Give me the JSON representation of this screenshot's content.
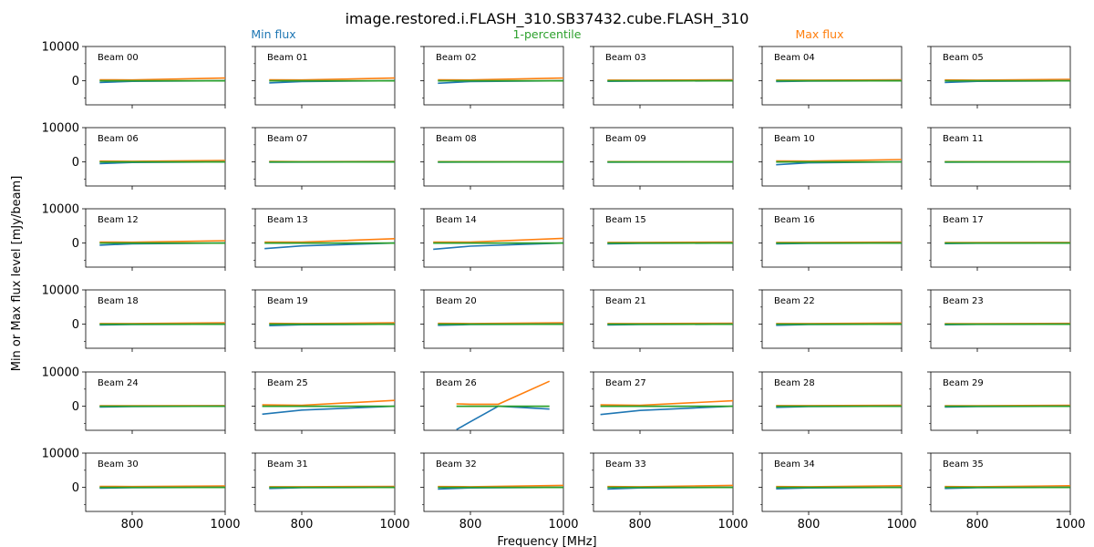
{
  "figure": {
    "title": "image.restored.i.FLASH_310.SB37432.cube.FLASH_310",
    "legend": [
      {
        "label": "Min flux",
        "color": "#1f77b4"
      },
      {
        "label": "1-percentile",
        "color": "#2ca02c"
      },
      {
        "label": "Max flux",
        "color": "#ff7f0e"
      }
    ],
    "xlabel": "Frequency [MHz]",
    "ylabel": "Min or Max flux level [mJy/beam]"
  },
  "chart_data": {
    "type": "line",
    "grid": false,
    "layout": "6x6 small multiples, shared axes",
    "xlim": [
      700,
      1000
    ],
    "ylim": [
      -7000,
      10000
    ],
    "xticks": [
      800,
      1000
    ],
    "yticks": [
      0,
      10000
    ],
    "series_names": [
      "Min flux",
      "1-percentile",
      "Max flux"
    ],
    "panels": [
      {
        "label": "Beam 00",
        "x": [
          730,
          800,
          1000
        ],
        "min": [
          -500,
          -150,
          0
        ],
        "p1": [
          0,
          0,
          0
        ],
        "max": [
          300,
          250,
          800
        ]
      },
      {
        "label": "Beam 01",
        "x": [
          730,
          800,
          1000
        ],
        "min": [
          -600,
          -200,
          0
        ],
        "p1": [
          0,
          0,
          0
        ],
        "max": [
          300,
          250,
          800
        ]
      },
      {
        "label": "Beam 02",
        "x": [
          730,
          800,
          1000
        ],
        "min": [
          -700,
          -200,
          0
        ],
        "p1": [
          0,
          0,
          0
        ],
        "max": [
          300,
          250,
          800
        ]
      },
      {
        "label": "Beam 03",
        "x": [
          730,
          800,
          1000
        ],
        "min": [
          -150,
          -100,
          0
        ],
        "p1": [
          0,
          0,
          0
        ],
        "max": [
          200,
          200,
          300
        ]
      },
      {
        "label": "Beam 04",
        "x": [
          730,
          800,
          1000
        ],
        "min": [
          -200,
          -100,
          0
        ],
        "p1": [
          0,
          0,
          0
        ],
        "max": [
          200,
          200,
          300
        ]
      },
      {
        "label": "Beam 05",
        "x": [
          730,
          800,
          1000
        ],
        "min": [
          -500,
          -150,
          0
        ],
        "p1": [
          0,
          0,
          0
        ],
        "max": [
          250,
          200,
          450
        ]
      },
      {
        "label": "Beam 06",
        "x": [
          730,
          800,
          1000
        ],
        "min": [
          -500,
          -150,
          0
        ],
        "p1": [
          0,
          0,
          0
        ],
        "max": [
          250,
          200,
          450
        ]
      },
      {
        "label": "Beam 07",
        "x": [
          730,
          800,
          1000
        ],
        "min": [
          -100,
          -50,
          0
        ],
        "p1": [
          0,
          0,
          0
        ],
        "max": [
          150,
          100,
          150
        ]
      },
      {
        "label": "Beam 08",
        "x": [
          730,
          800,
          1000
        ],
        "min": [
          -100,
          -50,
          0
        ],
        "p1": [
          0,
          0,
          0
        ],
        "max": [
          100,
          100,
          100
        ]
      },
      {
        "label": "Beam 09",
        "x": [
          730,
          800,
          1000
        ],
        "min": [
          -100,
          -50,
          0
        ],
        "p1": [
          0,
          0,
          0
        ],
        "max": [
          100,
          100,
          100
        ]
      },
      {
        "label": "Beam 10",
        "x": [
          730,
          800,
          1000
        ],
        "min": [
          -800,
          -250,
          0
        ],
        "p1": [
          0,
          0,
          0
        ],
        "max": [
          300,
          250,
          700
        ]
      },
      {
        "label": "Beam 11",
        "x": [
          730,
          800,
          1000
        ],
        "min": [
          -100,
          -50,
          0
        ],
        "p1": [
          0,
          0,
          0
        ],
        "max": [
          100,
          100,
          100
        ]
      },
      {
        "label": "Beam 12",
        "x": [
          730,
          800,
          1000
        ],
        "min": [
          -600,
          -200,
          0
        ],
        "p1": [
          0,
          0,
          0
        ],
        "max": [
          300,
          250,
          700
        ]
      },
      {
        "label": "Beam 13",
        "x": [
          720,
          800,
          1000
        ],
        "min": [
          -1600,
          -800,
          0
        ],
        "p1": [
          0,
          0,
          0
        ],
        "max": [
          300,
          300,
          1300
        ]
      },
      {
        "label": "Beam 14",
        "x": [
          720,
          800,
          1000
        ],
        "min": [
          -1800,
          -900,
          0
        ],
        "p1": [
          0,
          0,
          0
        ],
        "max": [
          300,
          300,
          1400
        ]
      },
      {
        "label": "Beam 15",
        "x": [
          730,
          800,
          1000
        ],
        "min": [
          -200,
          -100,
          0
        ],
        "p1": [
          0,
          0,
          0
        ],
        "max": [
          200,
          200,
          300
        ]
      },
      {
        "label": "Beam 16",
        "x": [
          730,
          800,
          1000
        ],
        "min": [
          -200,
          -100,
          0
        ],
        "p1": [
          0,
          0,
          0
        ],
        "max": [
          200,
          200,
          300
        ]
      },
      {
        "label": "Beam 17",
        "x": [
          730,
          800,
          1000
        ],
        "min": [
          -150,
          -50,
          0
        ],
        "p1": [
          0,
          0,
          0
        ],
        "max": [
          150,
          150,
          200
        ]
      },
      {
        "label": "Beam 18",
        "x": [
          730,
          800,
          1000
        ],
        "min": [
          -200,
          -100,
          0
        ],
        "p1": [
          0,
          0,
          0
        ],
        "max": [
          200,
          200,
          400
        ]
      },
      {
        "label": "Beam 19",
        "x": [
          730,
          800,
          1000
        ],
        "min": [
          -400,
          -150,
          0
        ],
        "p1": [
          0,
          0,
          0
        ],
        "max": [
          250,
          200,
          400
        ]
      },
      {
        "label": "Beam 20",
        "x": [
          730,
          800,
          1000
        ],
        "min": [
          -300,
          -100,
          0
        ],
        "p1": [
          0,
          0,
          0
        ],
        "max": [
          250,
          200,
          400
        ]
      },
      {
        "label": "Beam 21",
        "x": [
          730,
          800,
          1000
        ],
        "min": [
          -200,
          -100,
          0
        ],
        "p1": [
          0,
          0,
          0
        ],
        "max": [
          200,
          200,
          300
        ]
      },
      {
        "label": "Beam 22",
        "x": [
          730,
          800,
          1000
        ],
        "min": [
          -300,
          -100,
          0
        ],
        "p1": [
          0,
          0,
          0
        ],
        "max": [
          200,
          200,
          350
        ]
      },
      {
        "label": "Beam 23",
        "x": [
          730,
          800,
          1000
        ],
        "min": [
          -150,
          -50,
          0
        ],
        "p1": [
          0,
          0,
          0
        ],
        "max": [
          150,
          150,
          250
        ]
      },
      {
        "label": "Beam 24",
        "x": [
          730,
          800,
          1000
        ],
        "min": [
          -200,
          -100,
          0
        ],
        "p1": [
          0,
          0,
          0
        ],
        "max": [
          150,
          150,
          200
        ]
      },
      {
        "label": "Beam 25",
        "x": [
          715,
          800,
          1000
        ],
        "min": [
          -2300,
          -1100,
          0
        ],
        "p1": [
          0,
          0,
          0
        ],
        "max": [
          400,
          300,
          1700
        ]
      },
      {
        "label": "Beam 26",
        "x": [
          770,
          800,
          860,
          970
        ],
        "min": [
          -6800,
          -4500,
          0,
          -800
        ],
        "p1": [
          0,
          0,
          0,
          0
        ],
        "max": [
          700,
          600,
          600,
          7300
        ]
      },
      {
        "label": "Beam 27",
        "x": [
          715,
          800,
          1000
        ],
        "min": [
          -2400,
          -1200,
          0
        ],
        "p1": [
          0,
          0,
          0
        ],
        "max": [
          400,
          300,
          1600
        ]
      },
      {
        "label": "Beam 28",
        "x": [
          730,
          800,
          1000
        ],
        "min": [
          -300,
          -100,
          0
        ],
        "p1": [
          0,
          0,
          0
        ],
        "max": [
          200,
          200,
          300
        ]
      },
      {
        "label": "Beam 29",
        "x": [
          730,
          800,
          1000
        ],
        "min": [
          -200,
          -100,
          0
        ],
        "p1": [
          0,
          0,
          0
        ],
        "max": [
          150,
          150,
          300
        ]
      },
      {
        "label": "Beam 30",
        "x": [
          730,
          800,
          1000
        ],
        "min": [
          -200,
          -100,
          0
        ],
        "p1": [
          0,
          0,
          0
        ],
        "max": [
          300,
          250,
          400
        ]
      },
      {
        "label": "Beam 31",
        "x": [
          730,
          800,
          1000
        ],
        "min": [
          -300,
          -100,
          0
        ],
        "p1": [
          0,
          0,
          0
        ],
        "max": [
          200,
          200,
          300
        ]
      },
      {
        "label": "Beam 32",
        "x": [
          730,
          800,
          1000
        ],
        "min": [
          -500,
          -150,
          0
        ],
        "p1": [
          0,
          0,
          0
        ],
        "max": [
          250,
          200,
          600
        ]
      },
      {
        "label": "Beam 33",
        "x": [
          730,
          800,
          1000
        ],
        "min": [
          -500,
          -150,
          0
        ],
        "p1": [
          0,
          0,
          0
        ],
        "max": [
          250,
          200,
          600
        ]
      },
      {
        "label": "Beam 34",
        "x": [
          730,
          800,
          1000
        ],
        "min": [
          -400,
          -150,
          0
        ],
        "p1": [
          0,
          0,
          0
        ],
        "max": [
          250,
          200,
          500
        ]
      },
      {
        "label": "Beam 35",
        "x": [
          730,
          800,
          1000
        ],
        "min": [
          -300,
          -100,
          0
        ],
        "p1": [
          0,
          0,
          0
        ],
        "max": [
          250,
          200,
          500
        ]
      }
    ]
  }
}
